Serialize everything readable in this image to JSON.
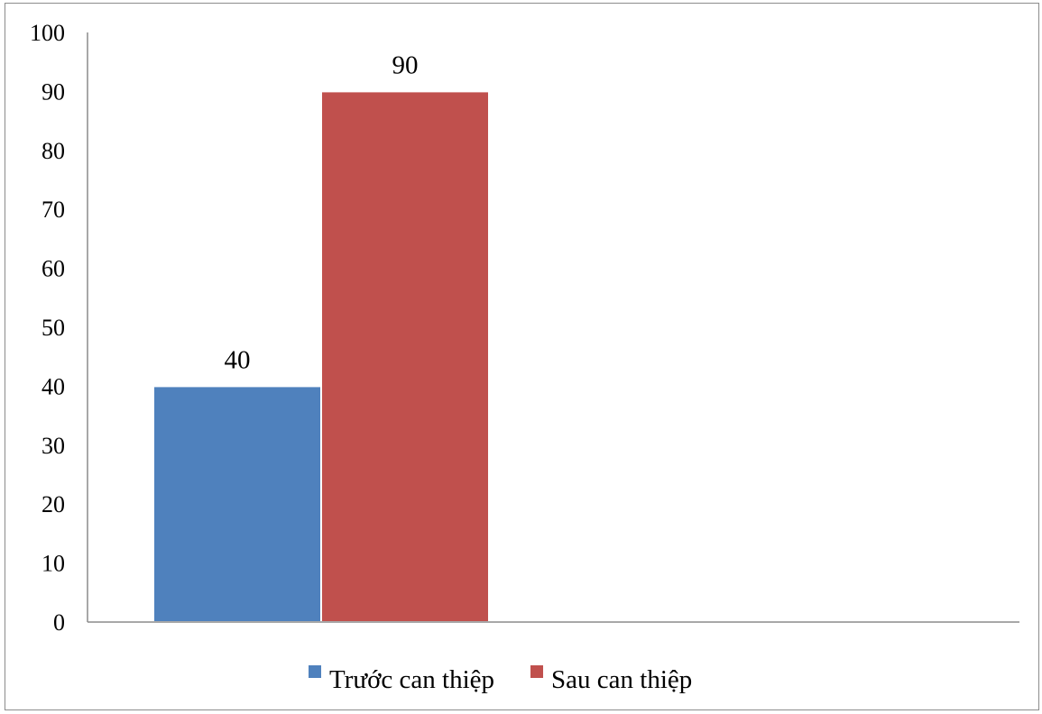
{
  "chart_data": {
    "type": "bar",
    "title": "",
    "xlabel": "",
    "ylabel": "",
    "categories": [
      ""
    ],
    "series": [
      {
        "name": "Trước can thiệp",
        "values": [
          40
        ],
        "color": "#4F81BD"
      },
      {
        "name": "Sau can thiệp",
        "values": [
          90
        ],
        "color": "#C0504D"
      }
    ],
    "ylim": [
      0,
      100
    ],
    "yticks": [
      0,
      10,
      20,
      30,
      40,
      50,
      60,
      70,
      80,
      90,
      100
    ],
    "data_labels": true,
    "grid": false,
    "legend_position": "bottom"
  }
}
